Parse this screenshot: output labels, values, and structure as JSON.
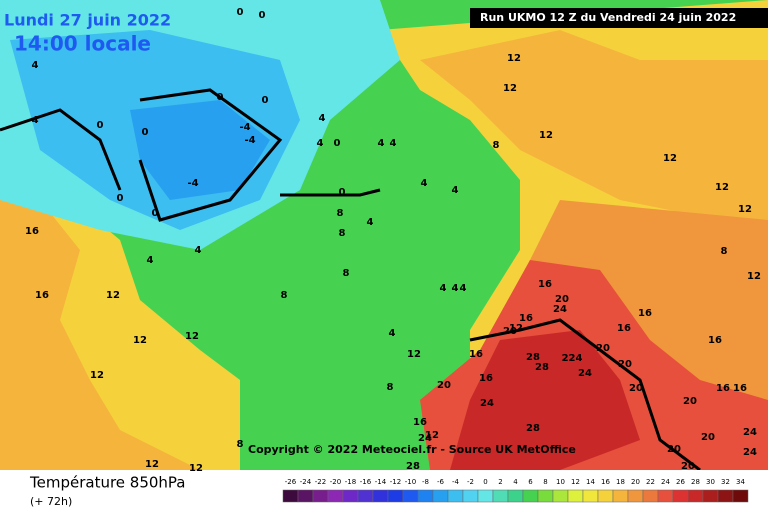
{
  "header": {
    "date": "Lundi 27 juin 2022",
    "time": "14:00 locale",
    "run": "Run UKMO 12 Z du Vendredi 24 juin 2022"
  },
  "copyright": "Copyright © 2022 Meteociel.fr - Source UK MetOffice",
  "footer": {
    "title": "Température 850hPa",
    "lead": "(+ 72h)"
  },
  "scale": {
    "labels": [
      -26,
      -24,
      -22,
      -20,
      -18,
      -16,
      -14,
      -12,
      -10,
      -8,
      -6,
      -4,
      -2,
      0,
      2,
      4,
      6,
      8,
      10,
      12,
      14,
      16,
      18,
      20,
      22,
      24,
      26,
      28,
      30,
      32,
      34
    ],
    "colors": [
      "#3c0a3c",
      "#5a1464",
      "#781e8c",
      "#8c28b4",
      "#6e28c8",
      "#5032d2",
      "#3232dc",
      "#1e3ce6",
      "#1e5af0",
      "#1e82f0",
      "#28a0f0",
      "#3cbef0",
      "#50d2f0",
      "#64e6e6",
      "#50dcb4",
      "#3cd28c",
      "#46d250",
      "#78dc3c",
      "#aae63c",
      "#dcf03c",
      "#f0e63c",
      "#f5d23c",
      "#f5b43c",
      "#f0963c",
      "#eb783c",
      "#e6503c",
      "#dc3232",
      "#c82828",
      "#aa1e1e",
      "#8c1414",
      "#6e0a0a"
    ]
  },
  "contours": [
    0,
    0,
    4,
    0,
    0,
    -4,
    -4,
    -4,
    0,
    0,
    4,
    4,
    0,
    4,
    4,
    12,
    12,
    8,
    -4,
    0,
    0,
    0,
    4,
    4,
    8,
    8,
    4,
    16,
    16,
    8,
    4,
    4,
    12,
    8,
    12,
    12,
    4,
    4,
    4,
    4,
    12,
    12,
    16,
    20,
    16,
    24,
    28,
    24,
    20,
    16,
    16,
    16,
    20,
    24,
    20,
    20,
    20,
    16,
    16,
    24,
    24,
    20,
    20,
    20,
    28,
    28,
    224,
    12,
    12,
    12,
    12,
    8,
    12,
    16,
    12,
    12,
    8,
    12,
    16,
    20,
    12,
    16,
    24,
    8,
    28
  ]
}
